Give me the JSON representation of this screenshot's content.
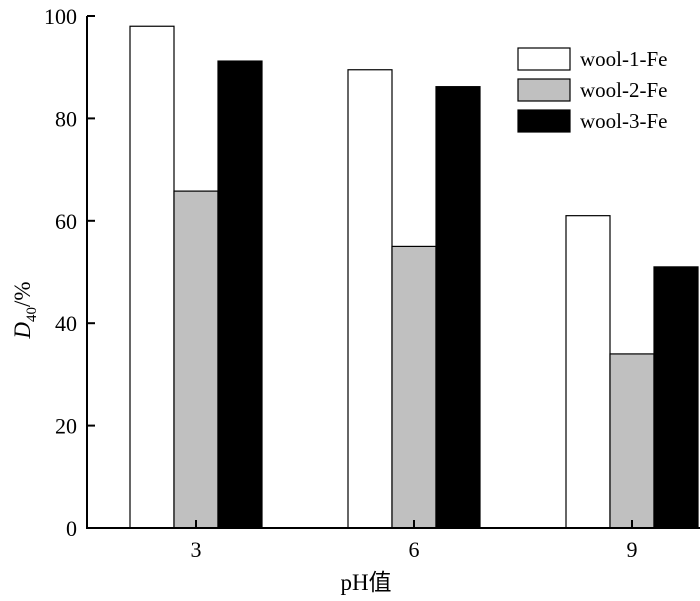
{
  "chart_data": {
    "type": "bar",
    "categories": [
      "3",
      "6",
      "9"
    ],
    "series": [
      {
        "name": "wool-1-Fe",
        "values": [
          98,
          89.5,
          61
        ],
        "color": "#ffffff"
      },
      {
        "name": "wool-2-Fe",
        "values": [
          65.8,
          55,
          34
        ],
        "color": "#c0c0c0"
      },
      {
        "name": "wool-3-Fe",
        "values": [
          91.2,
          86.2,
          51
        ],
        "color": "#000000"
      }
    ],
    "y_ticks": [
      "0",
      "20",
      "40",
      "60",
      "80",
      "100"
    ],
    "ylim": [
      0,
      100
    ],
    "ylabel": {
      "main": "D",
      "sub": "40",
      "unit": "/%"
    },
    "xlabel": "pH值",
    "legend_position": "top-right"
  }
}
